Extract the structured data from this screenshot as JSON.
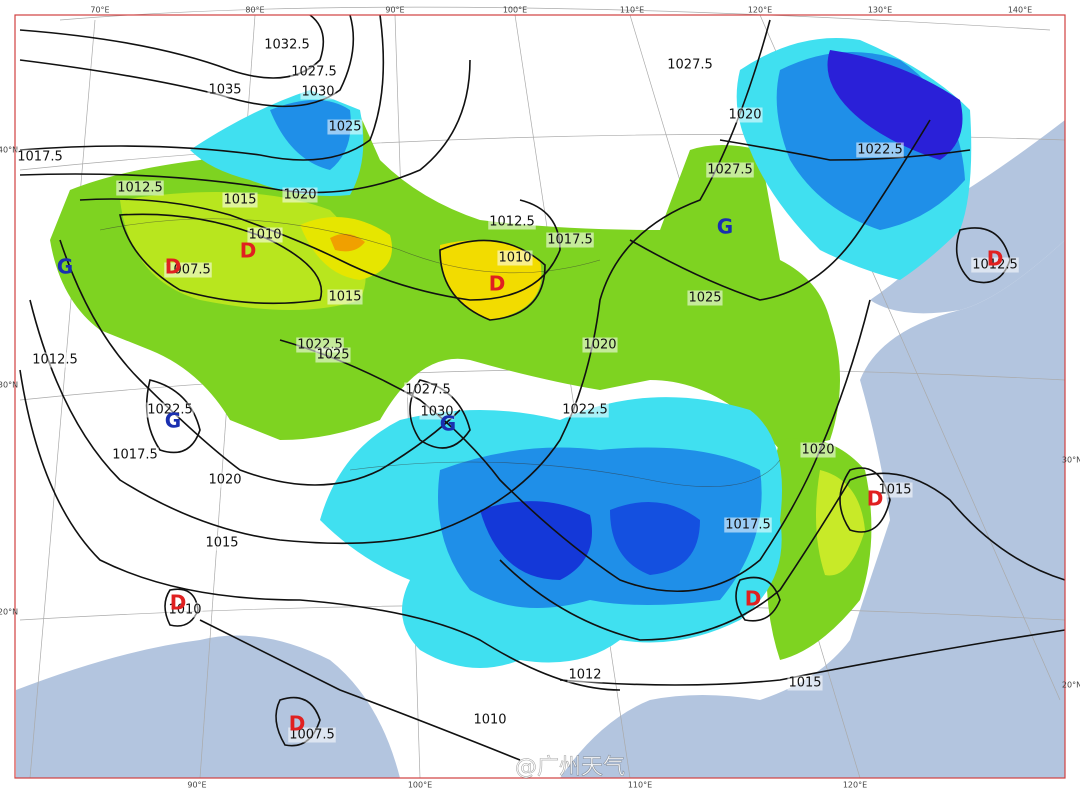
{
  "map": {
    "top_longitude_labels": [
      "70°E",
      "80°E",
      "90°E",
      "100°E",
      "110°E",
      "120°E",
      "130°E",
      "140°E"
    ],
    "bottom_longitude_labels": [
      "90°E",
      "100°E",
      "110°E",
      "120°E"
    ],
    "left_latitude_labels": [
      "40°N",
      "30°N",
      "20°N"
    ],
    "right_latitude_labels": [
      "30°N",
      "20°N"
    ],
    "isobar_labels": [
      1035,
      1032.5,
      1030,
      1027.5,
      1025,
      1020,
      1017.5,
      1015,
      1012.5,
      1010,
      1007.5,
      1015,
      1022.5,
      1025,
      1027.5,
      1030,
      1022.5,
      1017.5,
      1020,
      1015,
      1012.5,
      1012.5,
      1010,
      1017.5,
      1020,
      1022.5,
      1025,
      1027.5,
      1027.5,
      1020,
      1022.5,
      1020,
      1017.5,
      1015,
      1015,
      1012,
      1010,
      1007.5,
      1010,
      1012.5
    ],
    "high_centers": [
      "G",
      "G",
      "G",
      "G"
    ],
    "low_centers": [
      "D",
      "D",
      "D",
      "D",
      "D",
      "D",
      "D",
      "D"
    ],
    "watermark": "@广州天气"
  }
}
